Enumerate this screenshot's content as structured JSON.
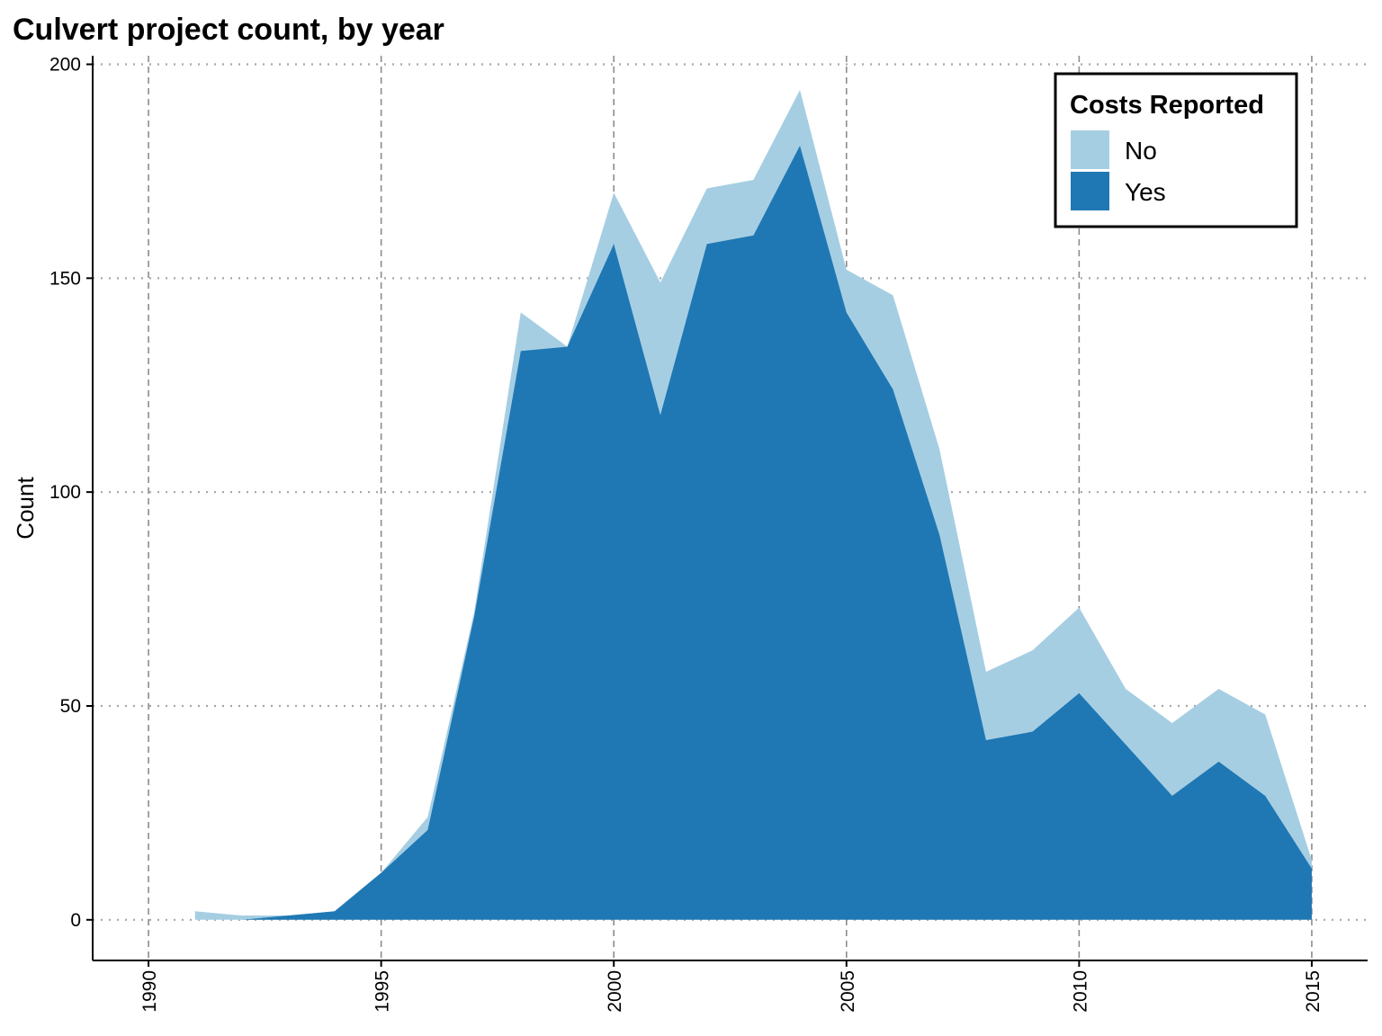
{
  "chart_data": {
    "type": "area",
    "stacked": true,
    "title": "Culvert project count, by year",
    "xlabel": "",
    "ylabel": "Count",
    "xlim": [
      1988.8,
      2016.2
    ],
    "ylim": [
      -9.5,
      202
    ],
    "x_ticks": [
      1990,
      1995,
      2000,
      2005,
      2010,
      2015
    ],
    "y_ticks": [
      0,
      50,
      100,
      150,
      200
    ],
    "grid": true,
    "legend": {
      "title": "Costs Reported",
      "position": "top-right"
    },
    "x": [
      1991,
      1992,
      1993,
      1994,
      1995,
      1996,
      1997,
      1998,
      1999,
      2000,
      2001,
      2002,
      2003,
      2004,
      2005,
      2006,
      2007,
      2008,
      2009,
      2010,
      2011,
      2012,
      2013,
      2014,
      2015
    ],
    "series": [
      {
        "name": "No",
        "color": "#a6cee3",
        "values": [
          2,
          1,
          0,
          0,
          0,
          3,
          1,
          9,
          0,
          12,
          31,
          13,
          13,
          13,
          10,
          22,
          20,
          16,
          19,
          20,
          13,
          17,
          17,
          19,
          2
        ]
      },
      {
        "name": "Yes",
        "color": "#1f78b4",
        "values": [
          0,
          0,
          1,
          2,
          11,
          21,
          71,
          133,
          134,
          158,
          118,
          158,
          160,
          181,
          142,
          124,
          90,
          42,
          44,
          53,
          41,
          29,
          37,
          29,
          12
        ]
      }
    ]
  }
}
